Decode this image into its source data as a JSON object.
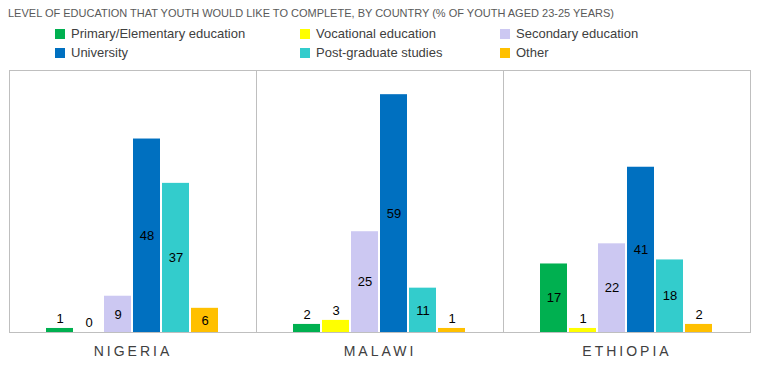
{
  "chart_data": {
    "type": "bar",
    "title": "LEVEL OF EDUCATION THAT YOUTH WOULD LIKE TO COMPLETE, BY COUNTRY (% OF YOUTH AGED 23-25 YEARS)",
    "categories": [
      "NIGERIA",
      "MALAWI",
      "ETHIOPIA"
    ],
    "series": [
      {
        "name": "Primary/Elementary education",
        "color": "#00b050",
        "values": [
          1,
          2,
          17
        ]
      },
      {
        "name": "Vocational education",
        "color": "#ffff00",
        "values": [
          0,
          3,
          1
        ]
      },
      {
        "name": "Secondary education",
        "color": "#ccc8f2",
        "values": [
          9,
          25,
          22
        ]
      },
      {
        "name": "University",
        "color": "#0070c0",
        "values": [
          48,
          59,
          41
        ]
      },
      {
        "name": "Post-graduate studies",
        "color": "#33cccc",
        "values": [
          37,
          11,
          18
        ]
      },
      {
        "name": "Other",
        "color": "#ffc000",
        "values": [
          6,
          1,
          2
        ]
      }
    ],
    "ylim": [
      0,
      65
    ],
    "yticks": [],
    "grid": false,
    "legend": "top",
    "data_labels": true,
    "tick_labels": "x"
  }
}
